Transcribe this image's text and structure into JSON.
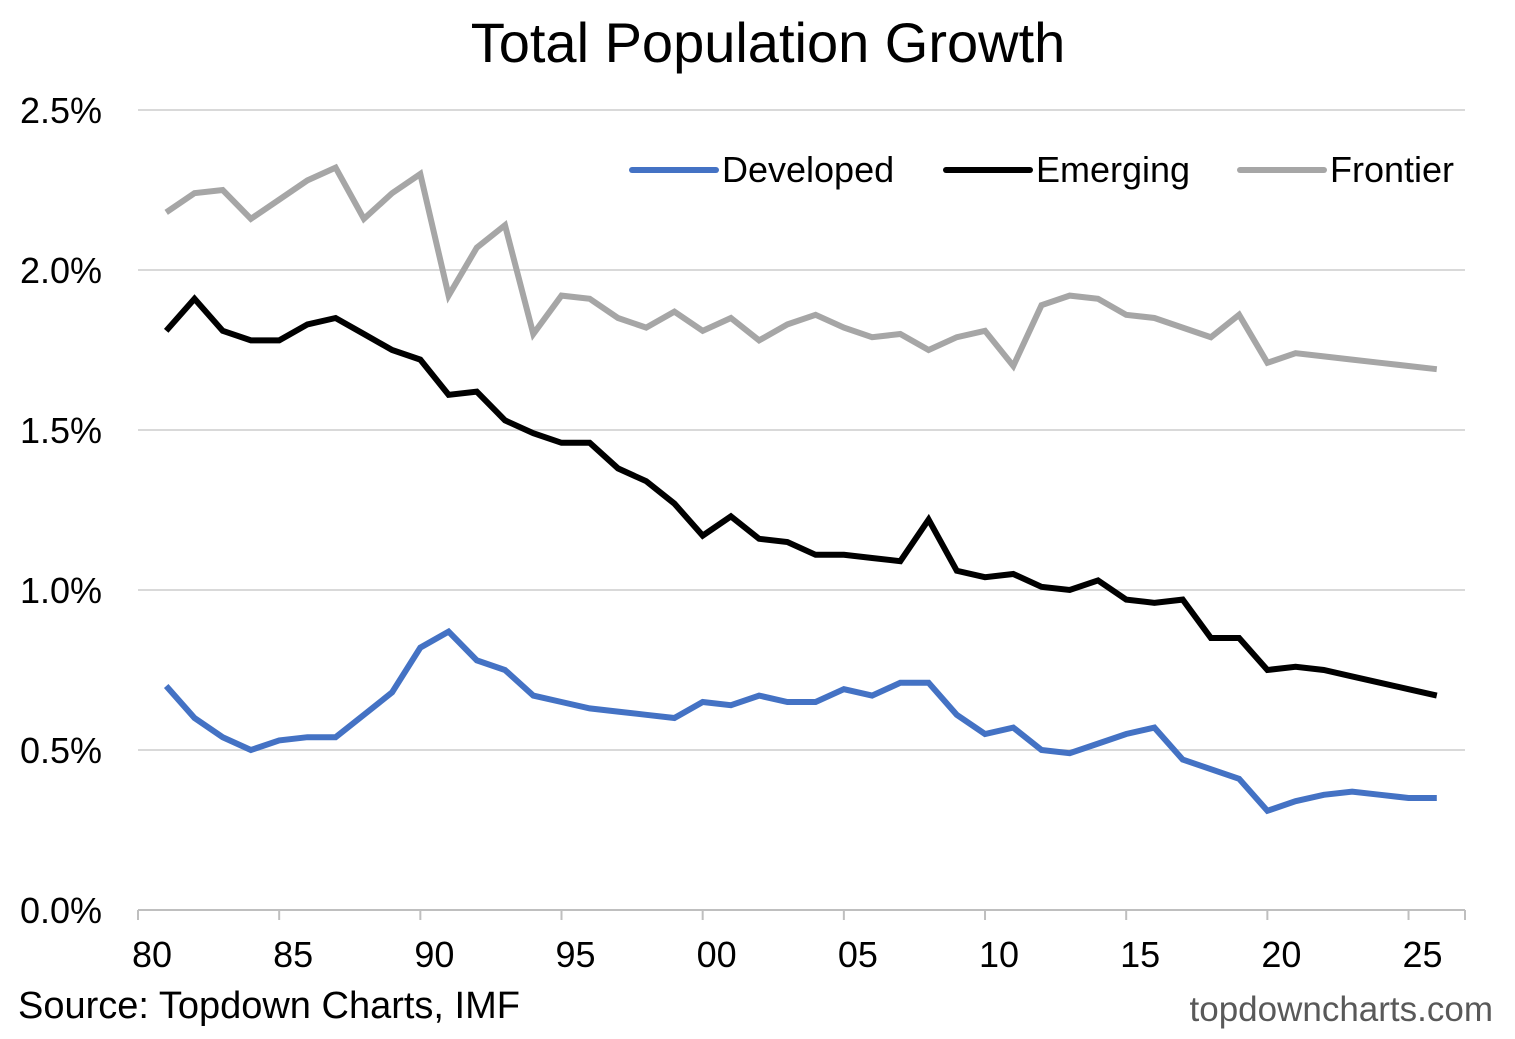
{
  "chart_data": {
    "type": "line",
    "title": "Total Population Growth",
    "xlabel": "",
    "ylabel": "",
    "ylim": [
      0,
      2.5
    ],
    "yticks": [
      0,
      0.5,
      1.0,
      1.5,
      2.0,
      2.5
    ],
    "ytick_labels": [
      "0.0%",
      "0.5%",
      "1.0%",
      "1.5%",
      "2.0%",
      "2.5%"
    ],
    "xlim": [
      1980,
      2027
    ],
    "xticks": [
      1980,
      1985,
      1990,
      1995,
      2000,
      2005,
      2010,
      2015,
      2020,
      2025
    ],
    "xtick_labels": [
      "80",
      "85",
      "90",
      "95",
      "00",
      "05",
      "10",
      "15",
      "20",
      "25"
    ],
    "grid": true,
    "legend_position": "top-right",
    "x": [
      1981,
      1982,
      1983,
      1984,
      1985,
      1986,
      1987,
      1988,
      1989,
      1990,
      1991,
      1992,
      1993,
      1994,
      1995,
      1996,
      1997,
      1998,
      1999,
      2000,
      2001,
      2002,
      2003,
      2004,
      2005,
      2006,
      2007,
      2008,
      2009,
      2010,
      2011,
      2012,
      2013,
      2014,
      2015,
      2016,
      2017,
      2018,
      2019,
      2020,
      2021,
      2022,
      2023,
      2024,
      2025,
      2026
    ],
    "series": [
      {
        "name": "Developed",
        "color": "#4472C4",
        "values": [
          0.7,
          0.6,
          0.54,
          0.5,
          0.53,
          0.54,
          0.54,
          0.61,
          0.68,
          0.82,
          0.87,
          0.78,
          0.75,
          0.67,
          0.65,
          0.63,
          0.62,
          0.61,
          0.6,
          0.65,
          0.64,
          0.67,
          0.65,
          0.65,
          0.69,
          0.67,
          0.71,
          0.71,
          0.61,
          0.55,
          0.57,
          0.5,
          0.49,
          0.52,
          0.55,
          0.57,
          0.47,
          0.44,
          0.41,
          0.31,
          0.34,
          0.36,
          0.37,
          0.36,
          0.35,
          0.35
        ]
      },
      {
        "name": "Emerging",
        "color": "#000000",
        "values": [
          1.81,
          1.91,
          1.81,
          1.78,
          1.78,
          1.83,
          1.85,
          1.8,
          1.75,
          1.72,
          1.61,
          1.62,
          1.53,
          1.49,
          1.46,
          1.46,
          1.38,
          1.34,
          1.27,
          1.17,
          1.23,
          1.16,
          1.15,
          1.11,
          1.11,
          1.1,
          1.09,
          1.22,
          1.06,
          1.04,
          1.05,
          1.01,
          1.0,
          1.03,
          0.97,
          0.96,
          0.97,
          0.85,
          0.85,
          0.75,
          0.76,
          0.75,
          0.73,
          0.71,
          0.69,
          0.67
        ]
      },
      {
        "name": "Frontier",
        "color": "#A6A6A6",
        "values": [
          2.18,
          2.24,
          2.25,
          2.16,
          2.22,
          2.28,
          2.32,
          2.16,
          2.24,
          2.3,
          1.92,
          2.07,
          2.14,
          1.8,
          1.92,
          1.91,
          1.85,
          1.82,
          1.87,
          1.81,
          1.85,
          1.78,
          1.83,
          1.86,
          1.82,
          1.79,
          1.8,
          1.75,
          1.79,
          1.81,
          1.7,
          1.89,
          1.92,
          1.91,
          1.86,
          1.85,
          1.82,
          1.79,
          1.86,
          1.71,
          1.74,
          1.73,
          1.72,
          1.71,
          1.7,
          1.69
        ]
      }
    ]
  },
  "footer": {
    "source": "Source: Topdown Charts, IMF",
    "website": "topdowncharts.com"
  }
}
